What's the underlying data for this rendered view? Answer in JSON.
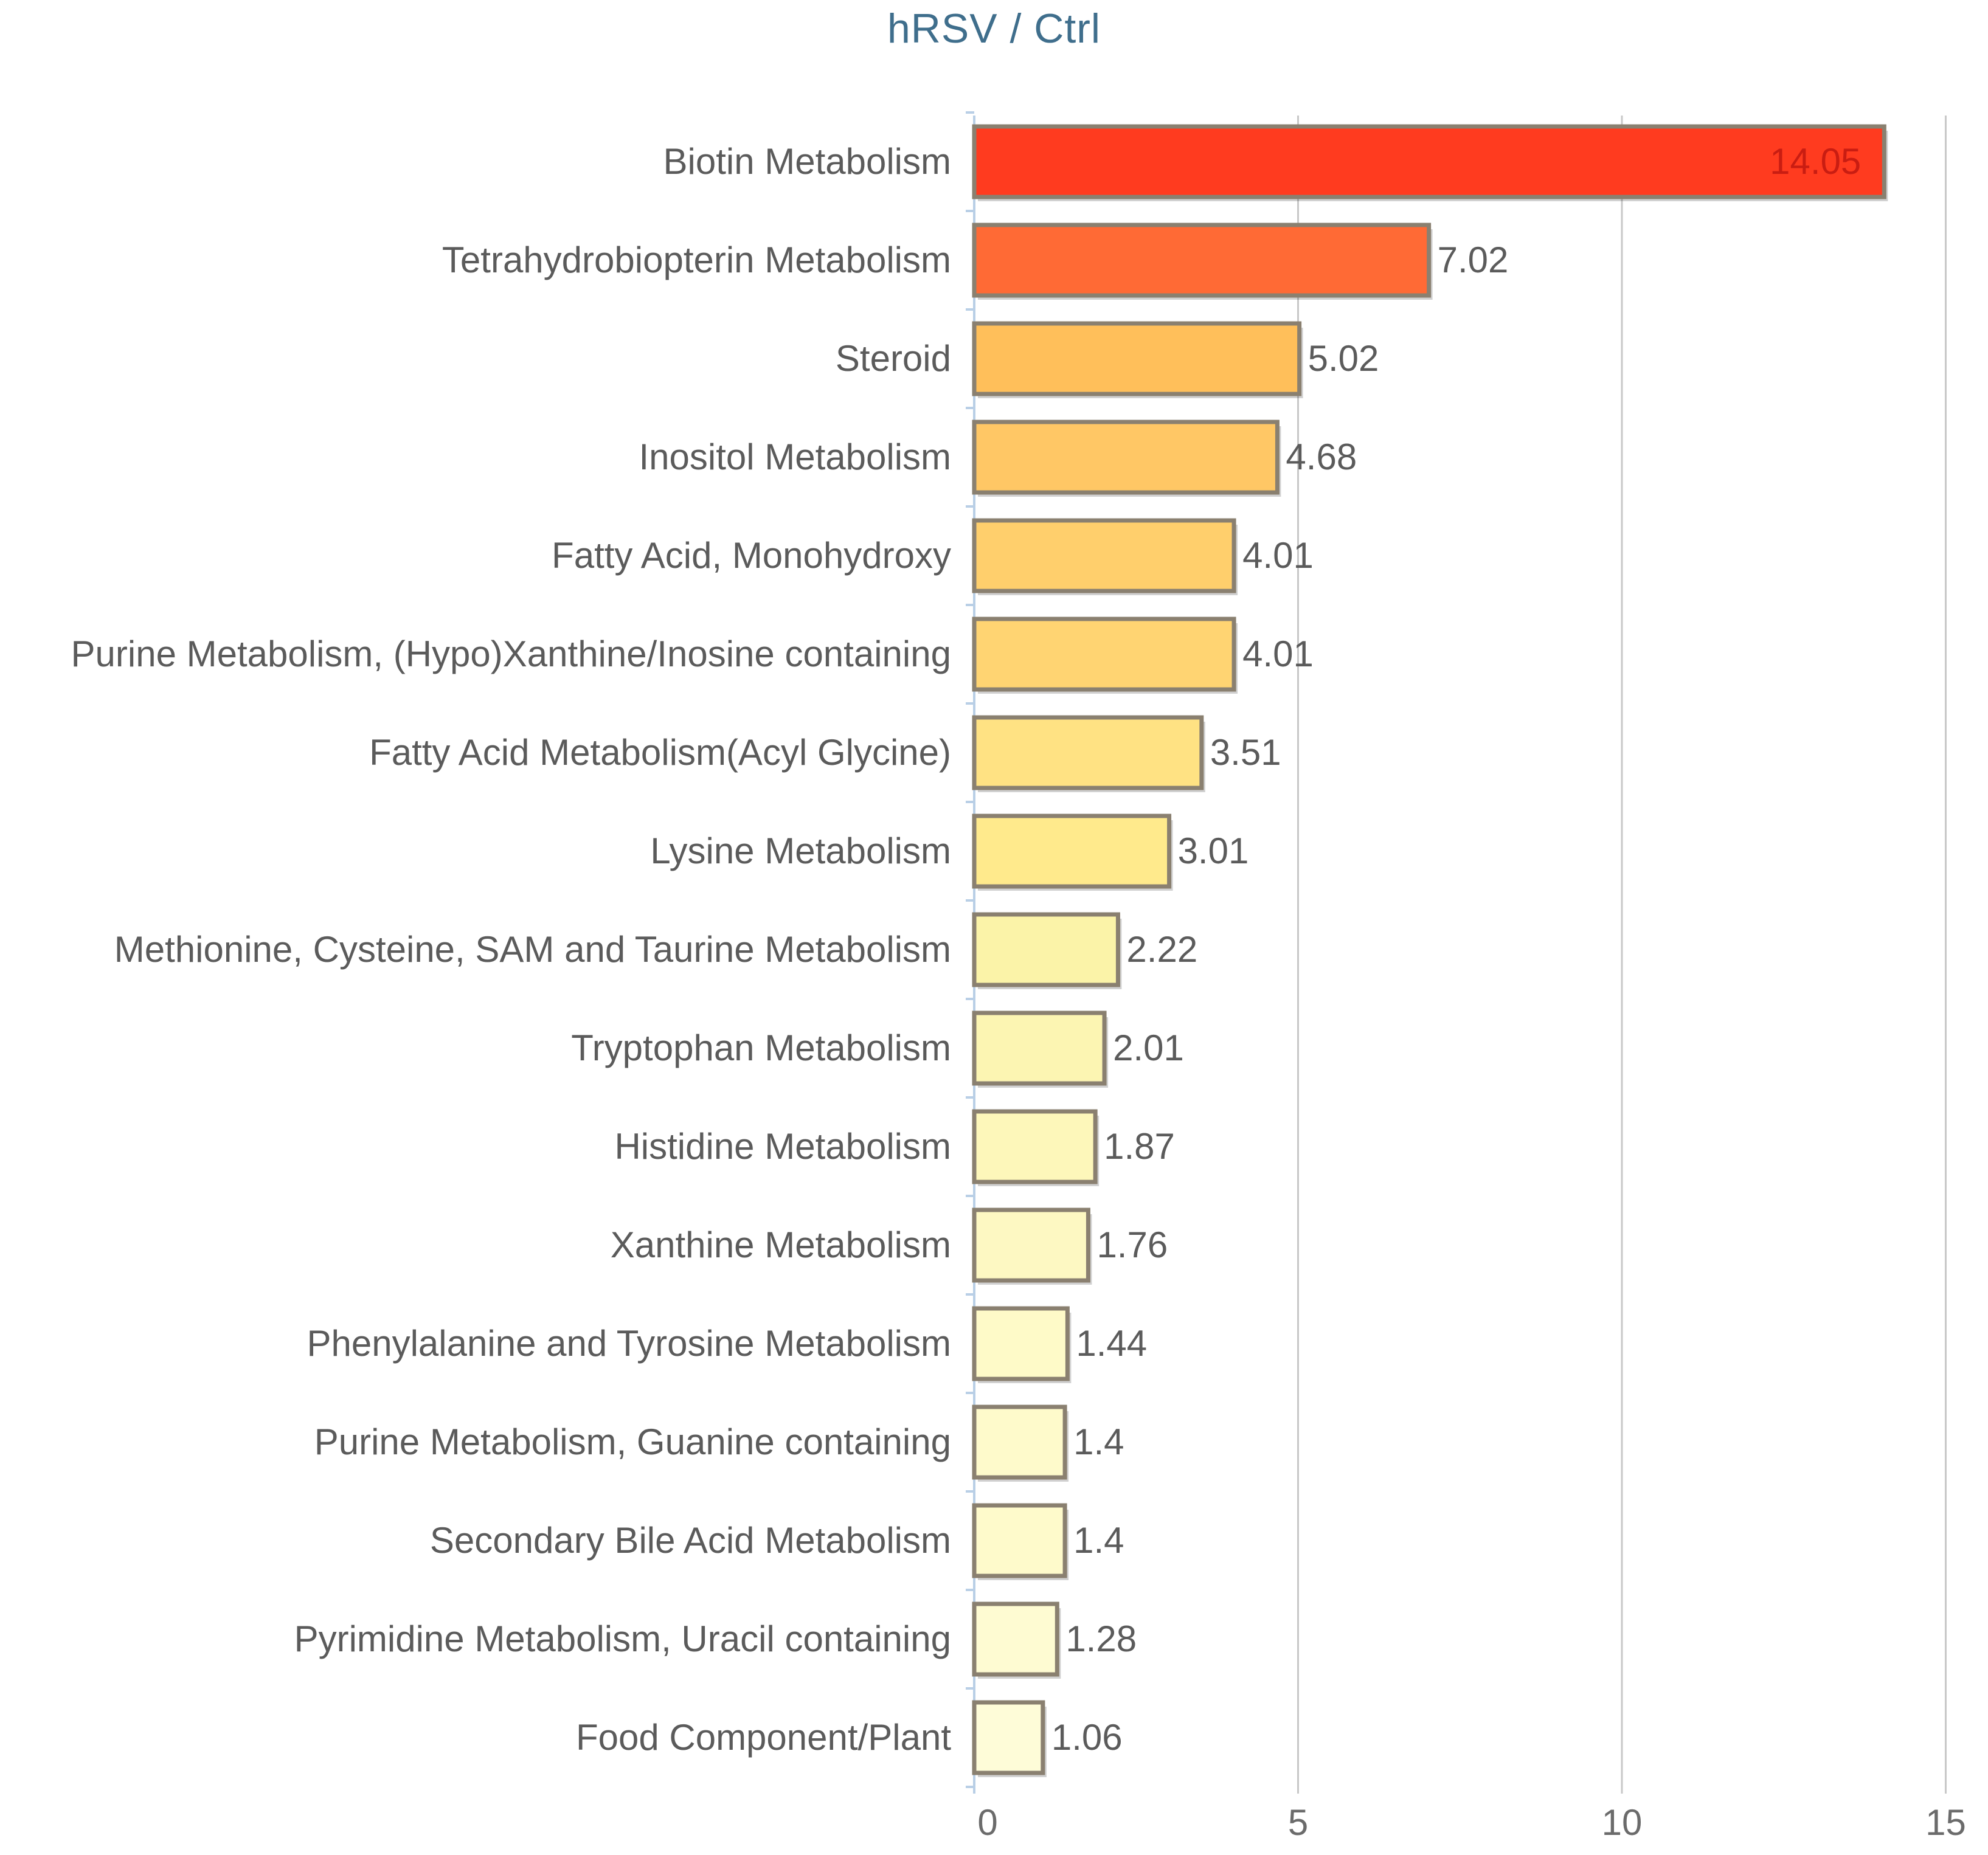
{
  "chart_data": {
    "type": "bar",
    "orientation": "horizontal",
    "title": "hRSV  /  Ctrl",
    "xlabel": "",
    "ylabel": "",
    "xlim": [
      0,
      15
    ],
    "xticks": [
      "0",
      "5",
      "10",
      "15"
    ],
    "grid": "vertical",
    "legend": "none",
    "categories": [
      "Biotin Metabolism",
      "Tetrahydrobiopterin Metabolism",
      "Steroid",
      "Inositol Metabolism",
      "Fatty Acid, Monohydroxy",
      "Purine Metabolism, (Hypo)Xanthine/Inosine containing",
      "Fatty Acid Metabolism(Acyl Glycine)",
      "Lysine Metabolism",
      "Methionine, Cysteine, SAM and Taurine Metabolism",
      "Tryptophan Metabolism",
      "Histidine Metabolism",
      "Xanthine Metabolism",
      "Phenylalanine and Tyrosine Metabolism",
      "Purine Metabolism, Guanine containing",
      "Secondary Bile Acid Metabolism",
      "Pyrimidine Metabolism, Uracil containing",
      "Food Component/Plant"
    ],
    "values": [
      14.05,
      7.02,
      5.02,
      4.68,
      4.01,
      4.01,
      3.51,
      3.01,
      2.22,
      2.01,
      1.87,
      1.76,
      1.44,
      1.4,
      1.4,
      1.28,
      1.06
    ],
    "value_labels": [
      "14.05",
      "7.02",
      "5.02",
      "4.68",
      "4.01",
      "4.01",
      "3.51",
      "3.01",
      "2.22",
      "2.01",
      "1.87",
      "1.76",
      "1.44",
      "1.4",
      "1.4",
      "1.28",
      "1.06"
    ],
    "colors": [
      "#ff3b1f",
      "#ff6a35",
      "#ffbf5a",
      "#ffc765",
      "#ffcf6c",
      "#ffd472",
      "#ffe283",
      "#ffea8c",
      "#fbf3a8",
      "#fcf5b2",
      "#fdf7ba",
      "#fdf8c2",
      "#fefac8",
      "#fefacb",
      "#fefacb",
      "#fefbd2",
      "#fefcd8"
    ],
    "bar_border_color": "#8a8070",
    "grid_color": "#c8c8c8",
    "axis_color": "#b9cfe6",
    "title_color": "#3f6e8c"
  }
}
